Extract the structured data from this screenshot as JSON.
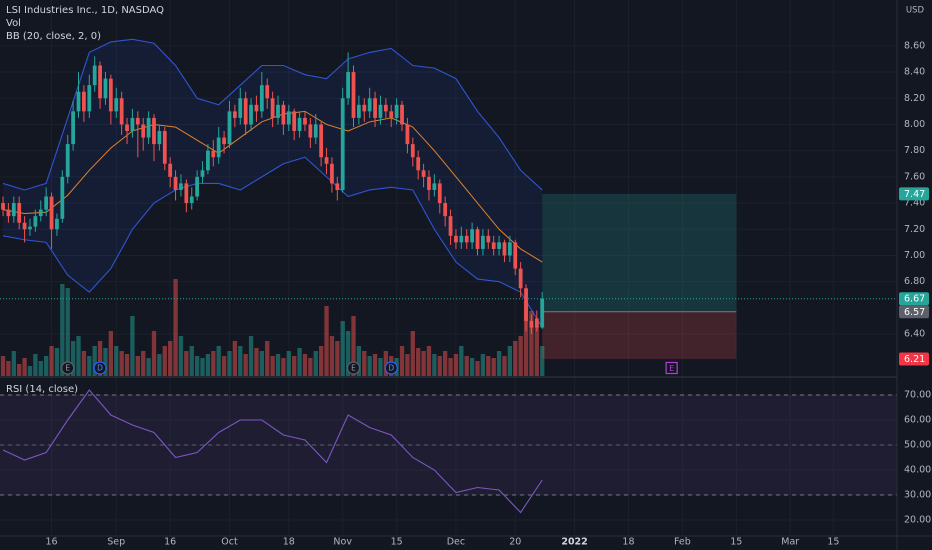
{
  "chart_data": {
    "type": "candlestick",
    "title": "LSI Industries Inc., 1D, NASDAQ",
    "currency": "USD",
    "up_color": "#26a69a",
    "down_color": "#ef5350",
    "grid": true,
    "open": [
      7.4,
      7.35,
      7.3,
      7.4,
      7.25,
      7.2,
      7.22,
      7.3,
      7.35,
      7.45,
      7.2,
      7.28,
      7.6,
      7.85,
      8.1,
      8.25,
      8.1,
      8.3,
      8.45,
      8.2,
      8.35,
      8.1,
      8.2,
      8.0,
      7.95,
      8.05,
      8.0,
      7.9,
      8.05,
      7.85,
      7.95,
      7.7,
      7.6,
      7.5,
      7.55,
      7.4,
      7.45,
      7.6,
      7.65,
      7.8,
      7.75,
      7.9,
      7.85,
      8.1,
      8.05,
      8.2,
      8.0,
      8.15,
      8.1,
      8.3,
      8.2,
      8.05,
      8.15,
      8.0,
      8.1,
      7.95,
      8.05,
      8.0,
      7.9,
      8.0,
      7.75,
      7.7,
      7.55,
      7.5,
      8.2,
      8.4,
      8.05,
      8.15,
      8.1,
      8.2,
      8.05,
      8.15,
      8.1,
      8.05,
      8.15,
      8.0,
      7.85,
      7.75,
      7.65,
      7.6,
      7.5,
      7.55,
      7.4,
      7.3,
      7.15,
      7.1,
      7.15,
      7.1,
      7.2,
      7.05,
      7.15,
      7.1,
      7.05,
      7.1,
      7.0,
      7.1,
      6.9,
      6.75,
      6.5,
      6.52,
      6.45
    ],
    "high": [
      7.45,
      7.4,
      7.45,
      7.45,
      7.3,
      7.28,
      7.35,
      7.42,
      7.52,
      7.48,
      7.32,
      7.65,
      7.92,
      8.18,
      8.4,
      8.3,
      8.38,
      8.52,
      8.48,
      8.4,
      8.38,
      8.28,
      8.25,
      8.05,
      8.12,
      8.1,
      8.05,
      8.1,
      8.08,
      8.0,
      7.98,
      7.75,
      7.65,
      7.62,
      7.58,
      7.52,
      7.65,
      7.72,
      7.85,
      7.88,
      7.98,
      7.95,
      8.18,
      8.15,
      8.28,
      8.25,
      8.2,
      8.22,
      8.4,
      8.35,
      8.25,
      8.22,
      8.18,
      8.15,
      8.12,
      8.1,
      8.1,
      8.05,
      8.08,
      8.02,
      7.82,
      7.75,
      7.6,
      8.28,
      8.55,
      8.45,
      8.22,
      8.2,
      8.28,
      8.25,
      8.22,
      8.2,
      8.15,
      8.2,
      8.18,
      8.05,
      7.9,
      7.8,
      7.7,
      7.65,
      7.62,
      7.58,
      7.45,
      7.35,
      7.2,
      7.22,
      7.2,
      7.25,
      7.22,
      7.2,
      7.2,
      7.15,
      7.15,
      7.12,
      7.15,
      7.12,
      6.95,
      6.78,
      6.55,
      6.58,
      6.72
    ],
    "low": [
      7.3,
      7.25,
      7.25,
      7.2,
      7.1,
      7.15,
      7.18,
      7.26,
      7.3,
      7.05,
      7.15,
      7.25,
      7.55,
      7.8,
      8.05,
      8.02,
      8.05,
      8.25,
      8.12,
      8.15,
      8.0,
      8.05,
      7.92,
      7.85,
      7.9,
      7.75,
      7.8,
      7.85,
      7.72,
      7.8,
      7.65,
      7.52,
      7.42,
      7.45,
      7.33,
      7.35,
      7.42,
      7.55,
      7.62,
      7.68,
      7.7,
      7.78,
      7.82,
      7.98,
      8.0,
      7.92,
      7.95,
      8.02,
      8.05,
      8.12,
      7.98,
      8.0,
      7.92,
      7.95,
      7.88,
      7.9,
      7.95,
      7.82,
      7.85,
      7.68,
      7.62,
      7.48,
      7.42,
      7.48,
      8.15,
      7.98,
      8.0,
      8.02,
      8.05,
      7.98,
      8.0,
      8.05,
      7.98,
      8.0,
      7.95,
      7.78,
      7.68,
      7.58,
      7.52,
      7.42,
      7.45,
      7.32,
      7.22,
      7.08,
      7.05,
      7.05,
      7.05,
      7.05,
      7.0,
      7.0,
      7.05,
      7.0,
      7.0,
      6.95,
      6.95,
      6.85,
      6.68,
      6.42,
      6.4,
      6.42,
      6.44
    ],
    "close": [
      7.35,
      7.3,
      7.4,
      7.25,
      7.2,
      7.22,
      7.3,
      7.35,
      7.45,
      7.2,
      7.28,
      7.6,
      7.85,
      8.1,
      8.25,
      8.1,
      8.3,
      8.45,
      8.2,
      8.35,
      8.1,
      8.2,
      8.0,
      7.95,
      8.05,
      8.0,
      7.9,
      8.05,
      7.85,
      7.95,
      7.7,
      7.6,
      7.5,
      7.55,
      7.4,
      7.45,
      7.6,
      7.65,
      7.8,
      7.75,
      7.9,
      7.85,
      8.1,
      8.05,
      8.2,
      8.0,
      8.15,
      8.1,
      8.3,
      8.2,
      8.05,
      8.15,
      8.0,
      8.1,
      7.95,
      8.05,
      8.0,
      7.9,
      8.0,
      7.75,
      7.7,
      7.55,
      7.5,
      8.2,
      8.4,
      8.05,
      8.15,
      8.1,
      8.2,
      8.05,
      8.15,
      8.1,
      8.05,
      8.15,
      8.0,
      7.85,
      7.75,
      7.65,
      7.6,
      7.5,
      7.55,
      7.4,
      7.3,
      7.15,
      7.1,
      7.15,
      7.1,
      7.2,
      7.05,
      7.15,
      7.1,
      7.05,
      7.1,
      7.0,
      7.1,
      6.9,
      6.75,
      6.5,
      6.45,
      6.45,
      6.67
    ],
    "xlim": [
      -0.56,
      165.8
    ],
    "xticks": [
      {
        "value": 9,
        "label": "16"
      },
      {
        "value": 21,
        "label": "Sep"
      },
      {
        "value": 31,
        "label": "16"
      },
      {
        "value": 42,
        "label": "Oct"
      },
      {
        "value": 53,
        "label": "18"
      },
      {
        "value": 63,
        "label": "Nov"
      },
      {
        "value": 73,
        "label": "15"
      },
      {
        "value": 84,
        "label": "Dec"
      },
      {
        "value": 95,
        "label": "20"
      },
      {
        "value": 106,
        "label": "2022"
      },
      {
        "value": 116,
        "label": "18"
      },
      {
        "value": 126,
        "label": "Feb"
      },
      {
        "value": 136,
        "label": "15"
      },
      {
        "value": 146,
        "label": "Mar"
      },
      {
        "value": 154,
        "label": "15"
      }
    ],
    "ylim": [
      6.08,
      8.95
    ],
    "yticks": [
      {
        "value": 6.4,
        "label": "6.40"
      },
      {
        "value": 6.8,
        "label": "6.80"
      },
      {
        "value": 7.0,
        "label": "7.00"
      },
      {
        "value": 7.2,
        "label": "7.20"
      },
      {
        "value": 7.4,
        "label": "7.40"
      },
      {
        "value": 7.6,
        "label": "7.60"
      },
      {
        "value": 7.8,
        "label": "7.80"
      },
      {
        "value": 8.0,
        "label": "8.00"
      },
      {
        "value": 8.2,
        "label": "8.20"
      },
      {
        "value": 8.4,
        "label": "8.40"
      },
      {
        "value": 8.6,
        "label": "8.60"
      }
    ],
    "volume": {
      "name": "Vol",
      "vlim": [
        0,
        100
      ],
      "values": [
        20,
        15,
        25,
        12,
        18,
        10,
        22,
        15,
        20,
        30,
        28,
        92,
        88,
        35,
        40,
        25,
        20,
        30,
        35,
        28,
        45,
        30,
        25,
        22,
        60,
        20,
        25,
        18,
        45,
        22,
        30,
        35,
        97,
        40,
        25,
        30,
        20,
        18,
        22,
        25,
        30,
        20,
        25,
        35,
        30,
        22,
        40,
        28,
        25,
        35,
        20,
        22,
        18,
        25,
        20,
        28,
        22,
        18,
        25,
        30,
        70,
        40,
        35,
        55,
        45,
        60,
        30,
        25,
        20,
        22,
        18,
        25,
        20,
        18,
        30,
        22,
        45,
        28,
        25,
        30,
        22,
        20,
        25,
        18,
        22,
        30,
        20,
        18,
        15,
        22,
        20,
        18,
        25,
        20,
        30,
        35,
        40,
        75,
        65,
        50,
        30
      ]
    },
    "bb": {
      "name": "BB (20, close, 2, 0)",
      "line_color": "#2f55d4",
      "basis_color": "#e0822b",
      "x": [
        0,
        4,
        8,
        12,
        16,
        20,
        24,
        28,
        32,
        36,
        40,
        44,
        48,
        52,
        56,
        60,
        64,
        68,
        72,
        76,
        80,
        84,
        88,
        92,
        96,
        100
      ],
      "upper": [
        7.55,
        7.5,
        7.55,
        8.05,
        8.55,
        8.63,
        8.65,
        8.62,
        8.45,
        8.2,
        8.15,
        8.3,
        8.45,
        8.45,
        8.38,
        8.35,
        8.5,
        8.55,
        8.58,
        8.45,
        8.43,
        8.35,
        8.1,
        7.9,
        7.65,
        7.5
      ],
      "basis": [
        7.35,
        7.32,
        7.33,
        7.46,
        7.65,
        7.82,
        7.95,
        8.0,
        7.98,
        7.88,
        7.78,
        7.9,
        8.02,
        8.08,
        8.1,
        8.0,
        7.95,
        8.02,
        8.05,
        7.98,
        7.8,
        7.6,
        7.4,
        7.2,
        7.05,
        6.95
      ],
      "lower": [
        7.15,
        7.12,
        7.1,
        6.85,
        6.72,
        6.9,
        7.2,
        7.4,
        7.5,
        7.55,
        7.55,
        7.5,
        7.6,
        7.7,
        7.75,
        7.6,
        7.45,
        7.5,
        7.52,
        7.5,
        7.2,
        6.95,
        6.82,
        6.8,
        6.72,
        6.45
      ]
    },
    "rsi": {
      "name": "RSI (14, close)",
      "color": "#7e57c2",
      "x": [
        0,
        4,
        8,
        12,
        16,
        20,
        24,
        28,
        32,
        36,
        40,
        44,
        48,
        52,
        56,
        60,
        64,
        68,
        72,
        76,
        80,
        84,
        88,
        92,
        96,
        100
      ],
      "values": [
        48,
        44,
        47,
        60,
        72,
        62,
        58,
        55,
        45,
        47,
        55,
        60,
        60,
        54,
        52,
        43,
        62,
        57,
        54,
        45,
        40,
        31,
        33,
        32,
        23,
        36
      ],
      "ylim": [
        14,
        76.8
      ],
      "yticks": [
        {
          "value": 20,
          "label": "20.00"
        },
        {
          "value": 30,
          "label": "30.00"
        },
        {
          "value": 40,
          "label": "40.00"
        },
        {
          "value": 50,
          "label": "50.00"
        },
        {
          "value": 60,
          "label": "60.00"
        },
        {
          "value": 70,
          "label": "70.00"
        }
      ],
      "band": [
        30,
        70
      ],
      "midline": 50
    },
    "position": {
      "target": 7.47,
      "entry": 6.57,
      "stop": 6.21,
      "x": [
        100,
        136
      ]
    },
    "events": [
      {
        "label": "E",
        "x": 12
      },
      {
        "label": "D",
        "x": 18
      },
      {
        "label": "E",
        "x": 65
      },
      {
        "label": "D",
        "x": 72
      },
      {
        "label": "E",
        "x": 124
      }
    ]
  }
}
